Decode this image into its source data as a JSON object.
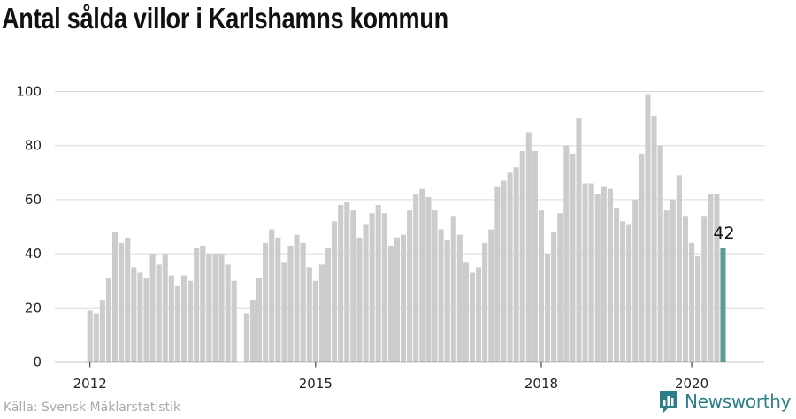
{
  "title": "Antal sålda villor i Karlshamns kommun",
  "source": "Källa: Svensk Mäklarstatistik",
  "brand": {
    "name": "Newsworthy",
    "icon": "newsworthy-logo-icon",
    "color": "#2b7f86"
  },
  "colors": {
    "bar": "#cccccc",
    "highlight": "#5a9e92",
    "grid": "#d9d9d9",
    "axis": "#222222"
  },
  "chart_data": {
    "type": "bar",
    "x_start": "2012-01",
    "frequency": "monthly",
    "x_ticks": [
      "2012",
      "2015",
      "2018",
      "2020"
    ],
    "y_ticks": [
      0,
      20,
      40,
      60,
      80,
      100
    ],
    "ylim": [
      0,
      105
    ],
    "grid": true,
    "highlight_last": true,
    "highlight_label": "42",
    "values": [
      19,
      18,
      23,
      31,
      48,
      44,
      46,
      35,
      33,
      31,
      40,
      36,
      40,
      32,
      28,
      32,
      30,
      42,
      43,
      40,
      40,
      40,
      36,
      30,
      null,
      18,
      23,
      31,
      44,
      49,
      46,
      37,
      43,
      47,
      44,
      35,
      30,
      36,
      42,
      52,
      58,
      59,
      56,
      46,
      51,
      55,
      58,
      55,
      43,
      46,
      47,
      56,
      62,
      64,
      61,
      56,
      49,
      45,
      54,
      47,
      37,
      33,
      35,
      44,
      49,
      65,
      67,
      70,
      72,
      78,
      85,
      78,
      56,
      40,
      48,
      55,
      80,
      77,
      90,
      66,
      66,
      62,
      65,
      64,
      57,
      52,
      51,
      60,
      77,
      99,
      91,
      80,
      56,
      60,
      69,
      54,
      44,
      39,
      54,
      62,
      62,
      42
    ]
  }
}
